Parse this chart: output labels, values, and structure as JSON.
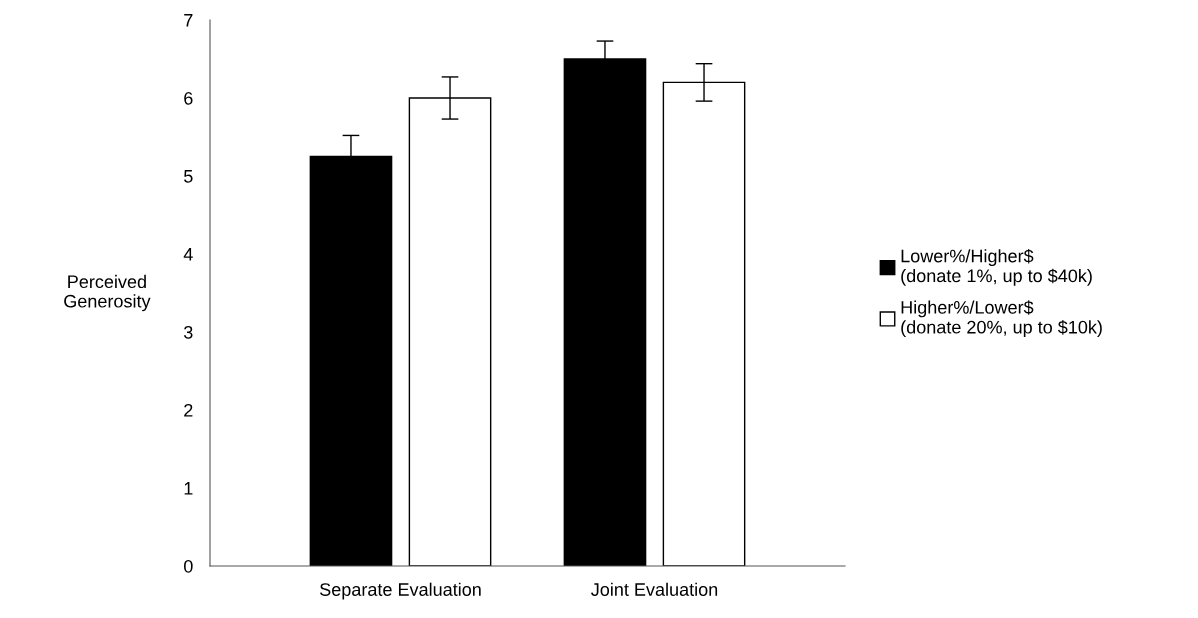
{
  "chart_data": {
    "type": "bar",
    "ylabel": "Perceived\nGenerosity",
    "categories": [
      "Separate Evaluation",
      "Joint Evaluation"
    ],
    "series": [
      {
        "name": "Lower%/Higher$\n(donate 1%, up to $40k)",
        "color": "#000000",
        "values": [
          5.25,
          6.5
        ],
        "errors": [
          0.27,
          0.23
        ]
      },
      {
        "name": "Higher%/Lower$\n(donate 20%, up to $10k)",
        "color": "#ffffff",
        "values": [
          6.0,
          6.2
        ],
        "errors": [
          0.27,
          0.24
        ]
      }
    ],
    "ylim": [
      0,
      7
    ],
    "yticks": [
      0,
      1,
      2,
      3,
      4,
      5,
      6,
      7
    ],
    "grid": false,
    "legend": "right"
  }
}
